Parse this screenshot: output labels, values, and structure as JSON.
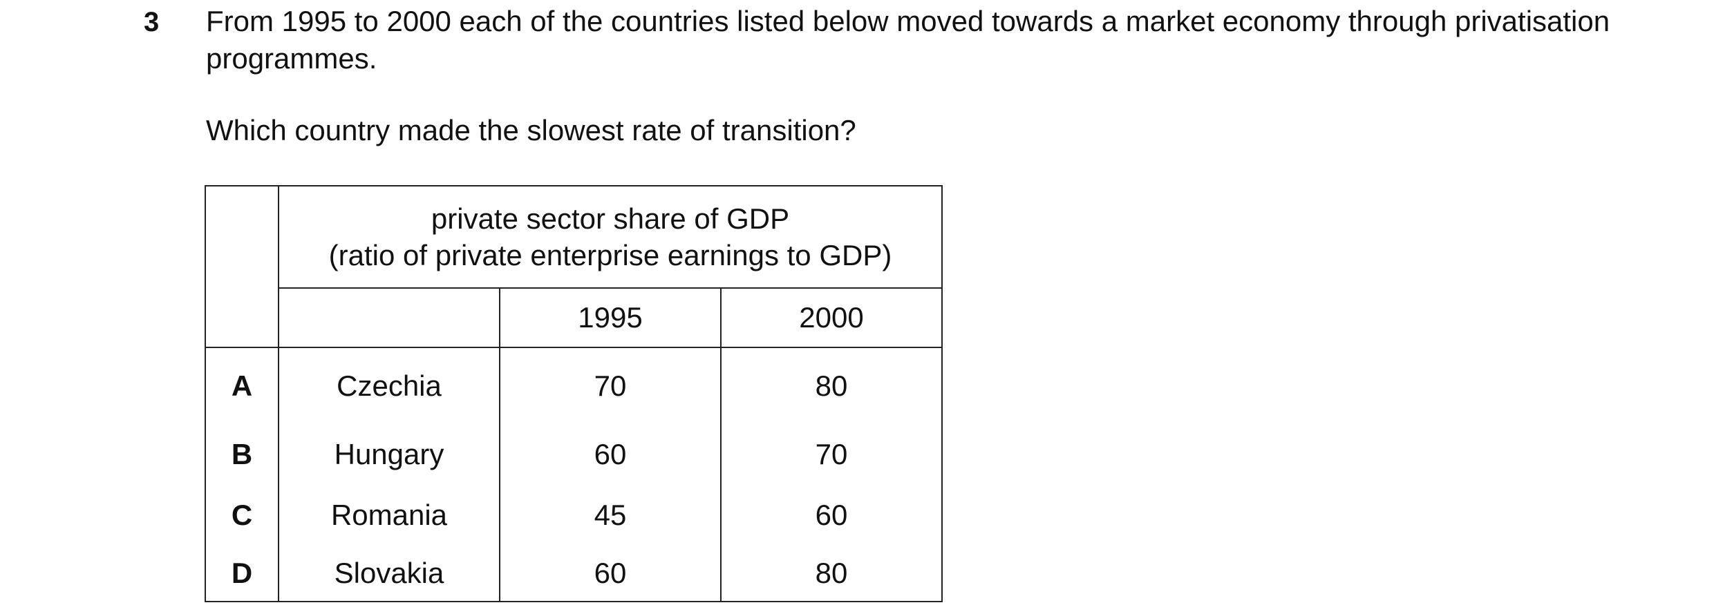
{
  "question": {
    "number": "3",
    "stem": "From 1995 to 2000 each of the countries listed below moved towards a market economy through privatisation programmes.",
    "prompt": "Which country made the slowest rate of transition?"
  },
  "table": {
    "header_line1": "private sector share of GDP",
    "header_line2": "(ratio of private enterprise earnings to GDP)",
    "year1": "1995",
    "year2": "2000",
    "rows": [
      {
        "option": "A",
        "country": "Czechia",
        "y1995": "70",
        "y2000": "80"
      },
      {
        "option": "B",
        "country": "Hungary",
        "y1995": "60",
        "y2000": "70"
      },
      {
        "option": "C",
        "country": "Romania",
        "y1995": "45",
        "y2000": "60"
      },
      {
        "option": "D",
        "country": "Slovakia",
        "y1995": "60",
        "y2000": "80"
      }
    ]
  }
}
